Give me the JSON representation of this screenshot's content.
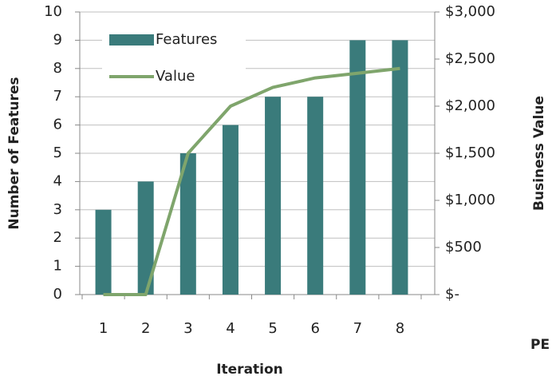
{
  "chart_data": {
    "type": "bar-line",
    "x_label": "Iteration",
    "y_label": "Number of Features",
    "y2_label": "Business Value",
    "annotation": "PE",
    "categories": [
      "1",
      "2",
      "3",
      "4",
      "5",
      "6",
      "7",
      "8"
    ],
    "series": [
      {
        "name": "Features",
        "type": "bar",
        "color": "#3a7b7b",
        "values": [
          3,
          4,
          5,
          6,
          7,
          7,
          9,
          9
        ]
      },
      {
        "name": "Value",
        "type": "line",
        "axis": "y2",
        "color": "#7fa56c",
        "values": [
          0,
          0,
          1500,
          2000,
          2200,
          2300,
          2350,
          2400
        ]
      }
    ],
    "ylim": [
      0,
      10
    ],
    "yticks": [
      0,
      1,
      2,
      3,
      4,
      5,
      6,
      7,
      8,
      9,
      10
    ],
    "y2lim": [
      0,
      3000
    ],
    "y2ticks": [
      {
        "value": 0,
        "label": "$-"
      },
      {
        "value": 500,
        "label": "$500"
      },
      {
        "value": 1000,
        "label": "$1,000"
      },
      {
        "value": 1500,
        "label": "$1,500"
      },
      {
        "value": 2000,
        "label": "$2,000"
      },
      {
        "value": 2500,
        "label": "$2,500"
      },
      {
        "value": 3000,
        "label": "$3,000"
      }
    ],
    "grid": true,
    "legend": "upper left"
  }
}
